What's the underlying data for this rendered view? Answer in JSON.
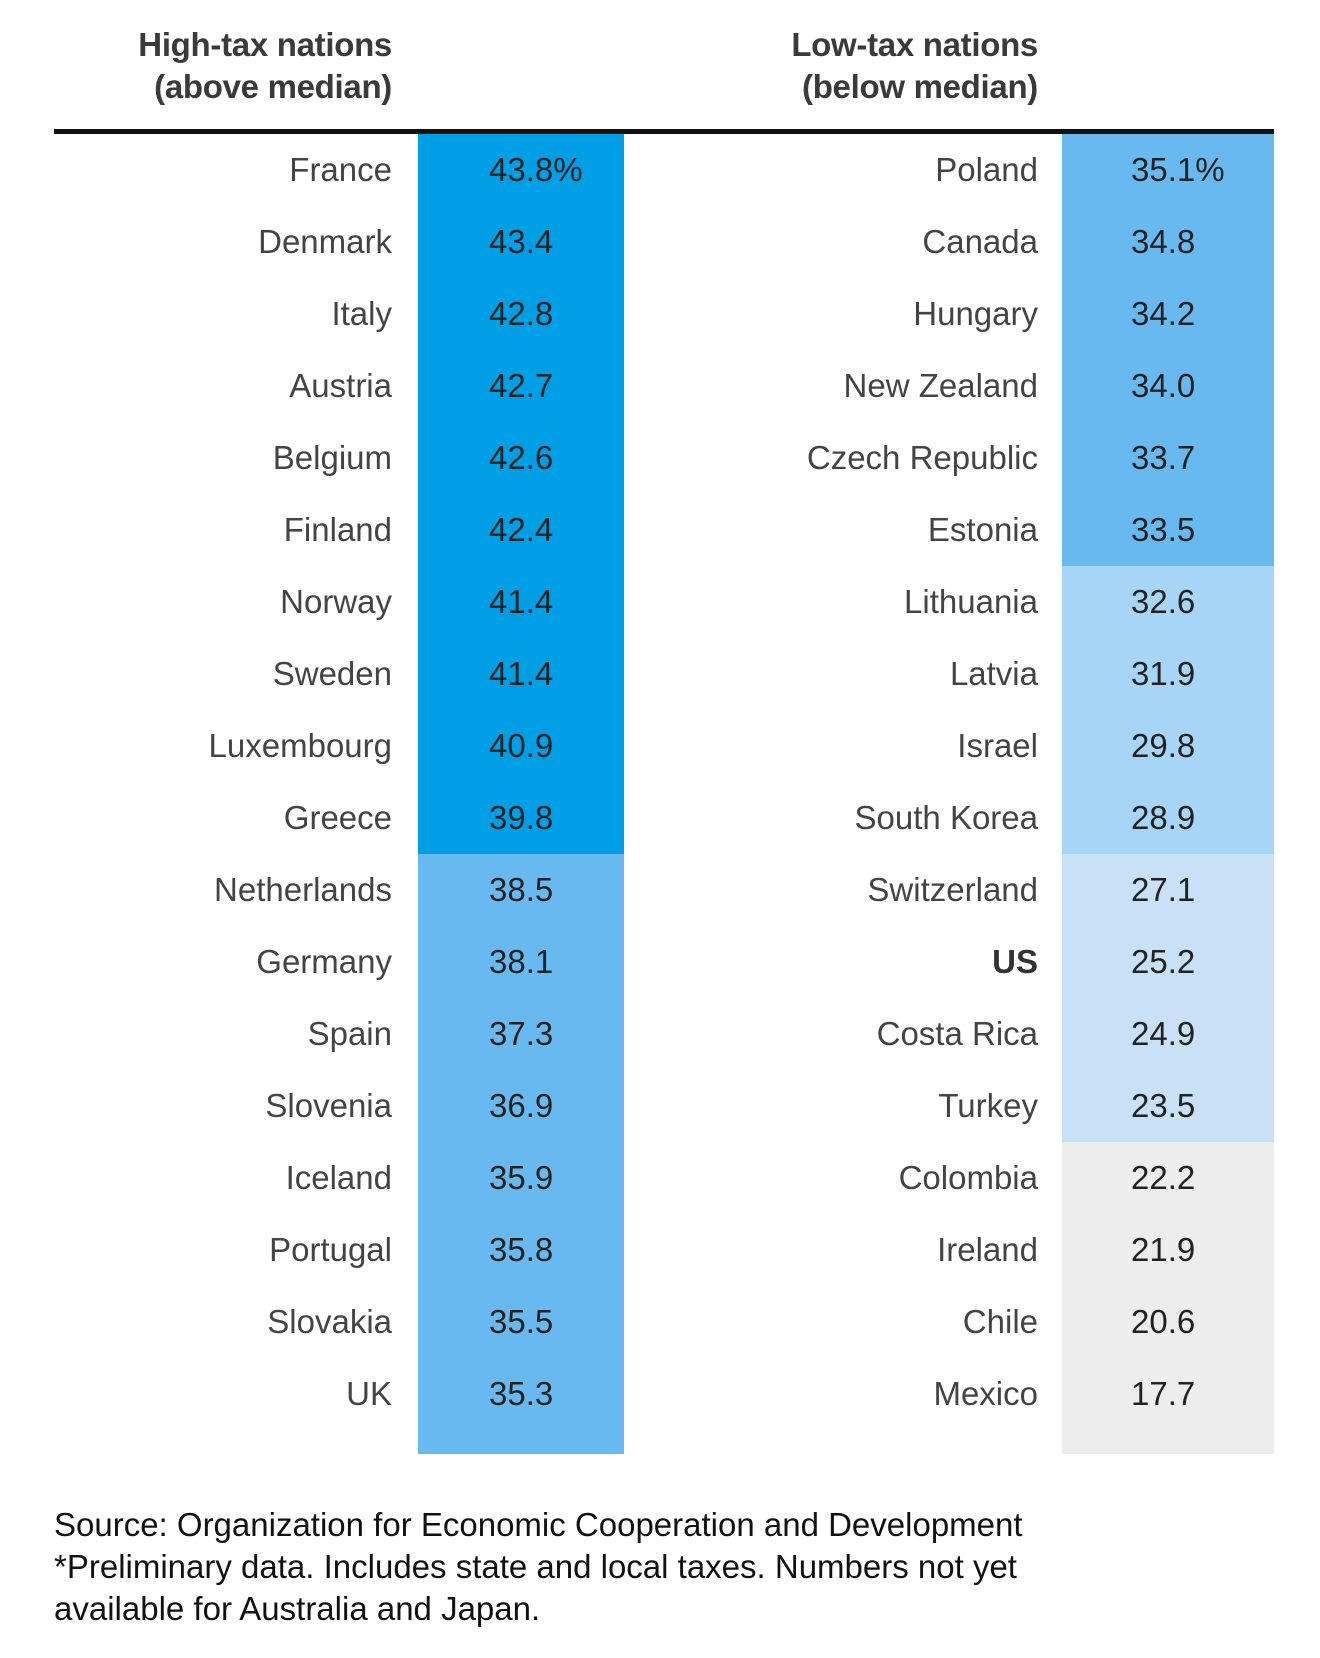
{
  "chart_data": {
    "type": "table",
    "unit": "%",
    "colors": {
      "tier1": "#009ee4",
      "tier2": "#68b9ef",
      "tier3": "#a6d5f8",
      "tier4": "#c9e1f6",
      "tier5": "#ededed",
      "rule": "#111111"
    },
    "columns": [
      {
        "title_line1": "High-tax nations",
        "title_line2": "(above median)",
        "rows": [
          {
            "country": "France",
            "value": "43.8%",
            "tier": 1
          },
          {
            "country": "Denmark",
            "value": "43.4",
            "tier": 1
          },
          {
            "country": "Italy",
            "value": "42.8",
            "tier": 1
          },
          {
            "country": "Austria",
            "value": "42.7",
            "tier": 1
          },
          {
            "country": "Belgium",
            "value": "42.6",
            "tier": 1
          },
          {
            "country": "Finland",
            "value": "42.4",
            "tier": 1
          },
          {
            "country": "Norway",
            "value": "41.4",
            "tier": 1
          },
          {
            "country": "Sweden",
            "value": "41.4",
            "tier": 1
          },
          {
            "country": "Luxembourg",
            "value": "40.9",
            "tier": 1
          },
          {
            "country": "Greece",
            "value": "39.8",
            "tier": 1
          },
          {
            "country": "Netherlands",
            "value": "38.5",
            "tier": 2
          },
          {
            "country": "Germany",
            "value": "38.1",
            "tier": 2
          },
          {
            "country": "Spain",
            "value": "37.3",
            "tier": 2
          },
          {
            "country": "Slovenia",
            "value": "36.9",
            "tier": 2
          },
          {
            "country": "Iceland",
            "value": "35.9",
            "tier": 2
          },
          {
            "country": "Portugal",
            "value": "35.8",
            "tier": 2
          },
          {
            "country": "Slovakia",
            "value": "35.5",
            "tier": 2
          },
          {
            "country": "UK",
            "value": "35.3",
            "tier": 2
          }
        ]
      },
      {
        "title_line1": "Low-tax nations",
        "title_line2": "(below median)",
        "rows": [
          {
            "country": "Poland",
            "value": "35.1%",
            "tier": 2
          },
          {
            "country": "Canada",
            "value": "34.8",
            "tier": 2
          },
          {
            "country": "Hungary",
            "value": "34.2",
            "tier": 2
          },
          {
            "country": "New Zealand",
            "value": "34.0",
            "tier": 2
          },
          {
            "country": "Czech Republic",
            "value": "33.7",
            "tier": 2
          },
          {
            "country": "Estonia",
            "value": "33.5",
            "tier": 2
          },
          {
            "country": "Lithuania",
            "value": "32.6",
            "tier": 3
          },
          {
            "country": "Latvia",
            "value": "31.9",
            "tier": 3
          },
          {
            "country": "Israel",
            "value": "29.8",
            "tier": 3
          },
          {
            "country": "South Korea",
            "value": "28.9",
            "tier": 3
          },
          {
            "country": "Switzerland",
            "value": "27.1",
            "tier": 4
          },
          {
            "country": "US",
            "value": "25.2",
            "tier": 4,
            "bold": true
          },
          {
            "country": "Costa Rica",
            "value": "24.9",
            "tier": 4
          },
          {
            "country": "Turkey",
            "value": "23.5",
            "tier": 4
          },
          {
            "country": "Colombia",
            "value": "22.2",
            "tier": 5
          },
          {
            "country": "Ireland",
            "value": "21.9",
            "tier": 5
          },
          {
            "country": "Chile",
            "value": "20.6",
            "tier": 5
          },
          {
            "country": "Mexico",
            "value": "17.7",
            "tier": 5
          }
        ]
      }
    ]
  },
  "footer": {
    "line1": "Source: Organization for Economic Cooperation and Development",
    "line2": "*Preliminary data. Includes state and local taxes. Numbers not yet",
    "line3": "available for Australia and Japan."
  }
}
